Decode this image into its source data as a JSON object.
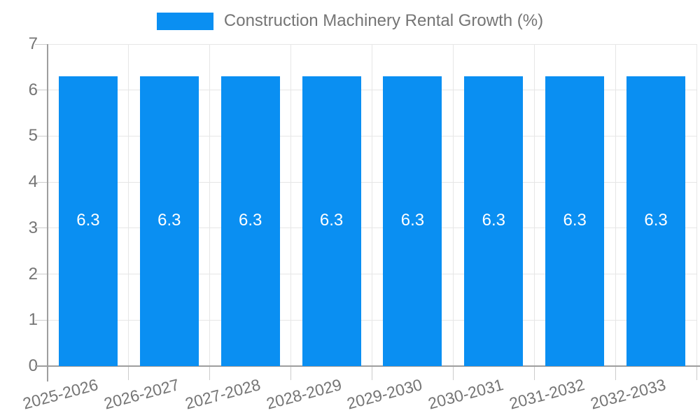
{
  "chart_data": {
    "type": "bar",
    "title": "Construction Machinery Rental Growth (%)",
    "legend": {
      "label": "Construction Machinery Rental Growth (%)",
      "position": "top"
    },
    "categories": [
      "2025-2026",
      "2026-2027",
      "2027-2028",
      "2028-2029",
      "2029-2030",
      "2030-2031",
      "2031-2032",
      "2032-2033"
    ],
    "values": [
      6.3,
      6.3,
      6.3,
      6.3,
      6.3,
      6.3,
      6.3,
      6.3
    ],
    "bar_labels": [
      "6.3",
      "6.3",
      "6.3",
      "6.3",
      "6.3",
      "6.3",
      "6.3",
      "6.3"
    ],
    "xlabel": "",
    "ylabel": "",
    "ylim": [
      0,
      7
    ],
    "yticks": [
      "0",
      "1",
      "2",
      "3",
      "4",
      "5",
      "6",
      "7"
    ],
    "grid": true,
    "x_label_rotation_deg": -15,
    "colors": {
      "bar": "#0a8ff2",
      "text": "#757575",
      "grid": "#e6e6e6",
      "axis": "#9e9e9e",
      "tick": "#cccccc",
      "bar_label": "#ffffff",
      "background": "#ffffff"
    }
  }
}
